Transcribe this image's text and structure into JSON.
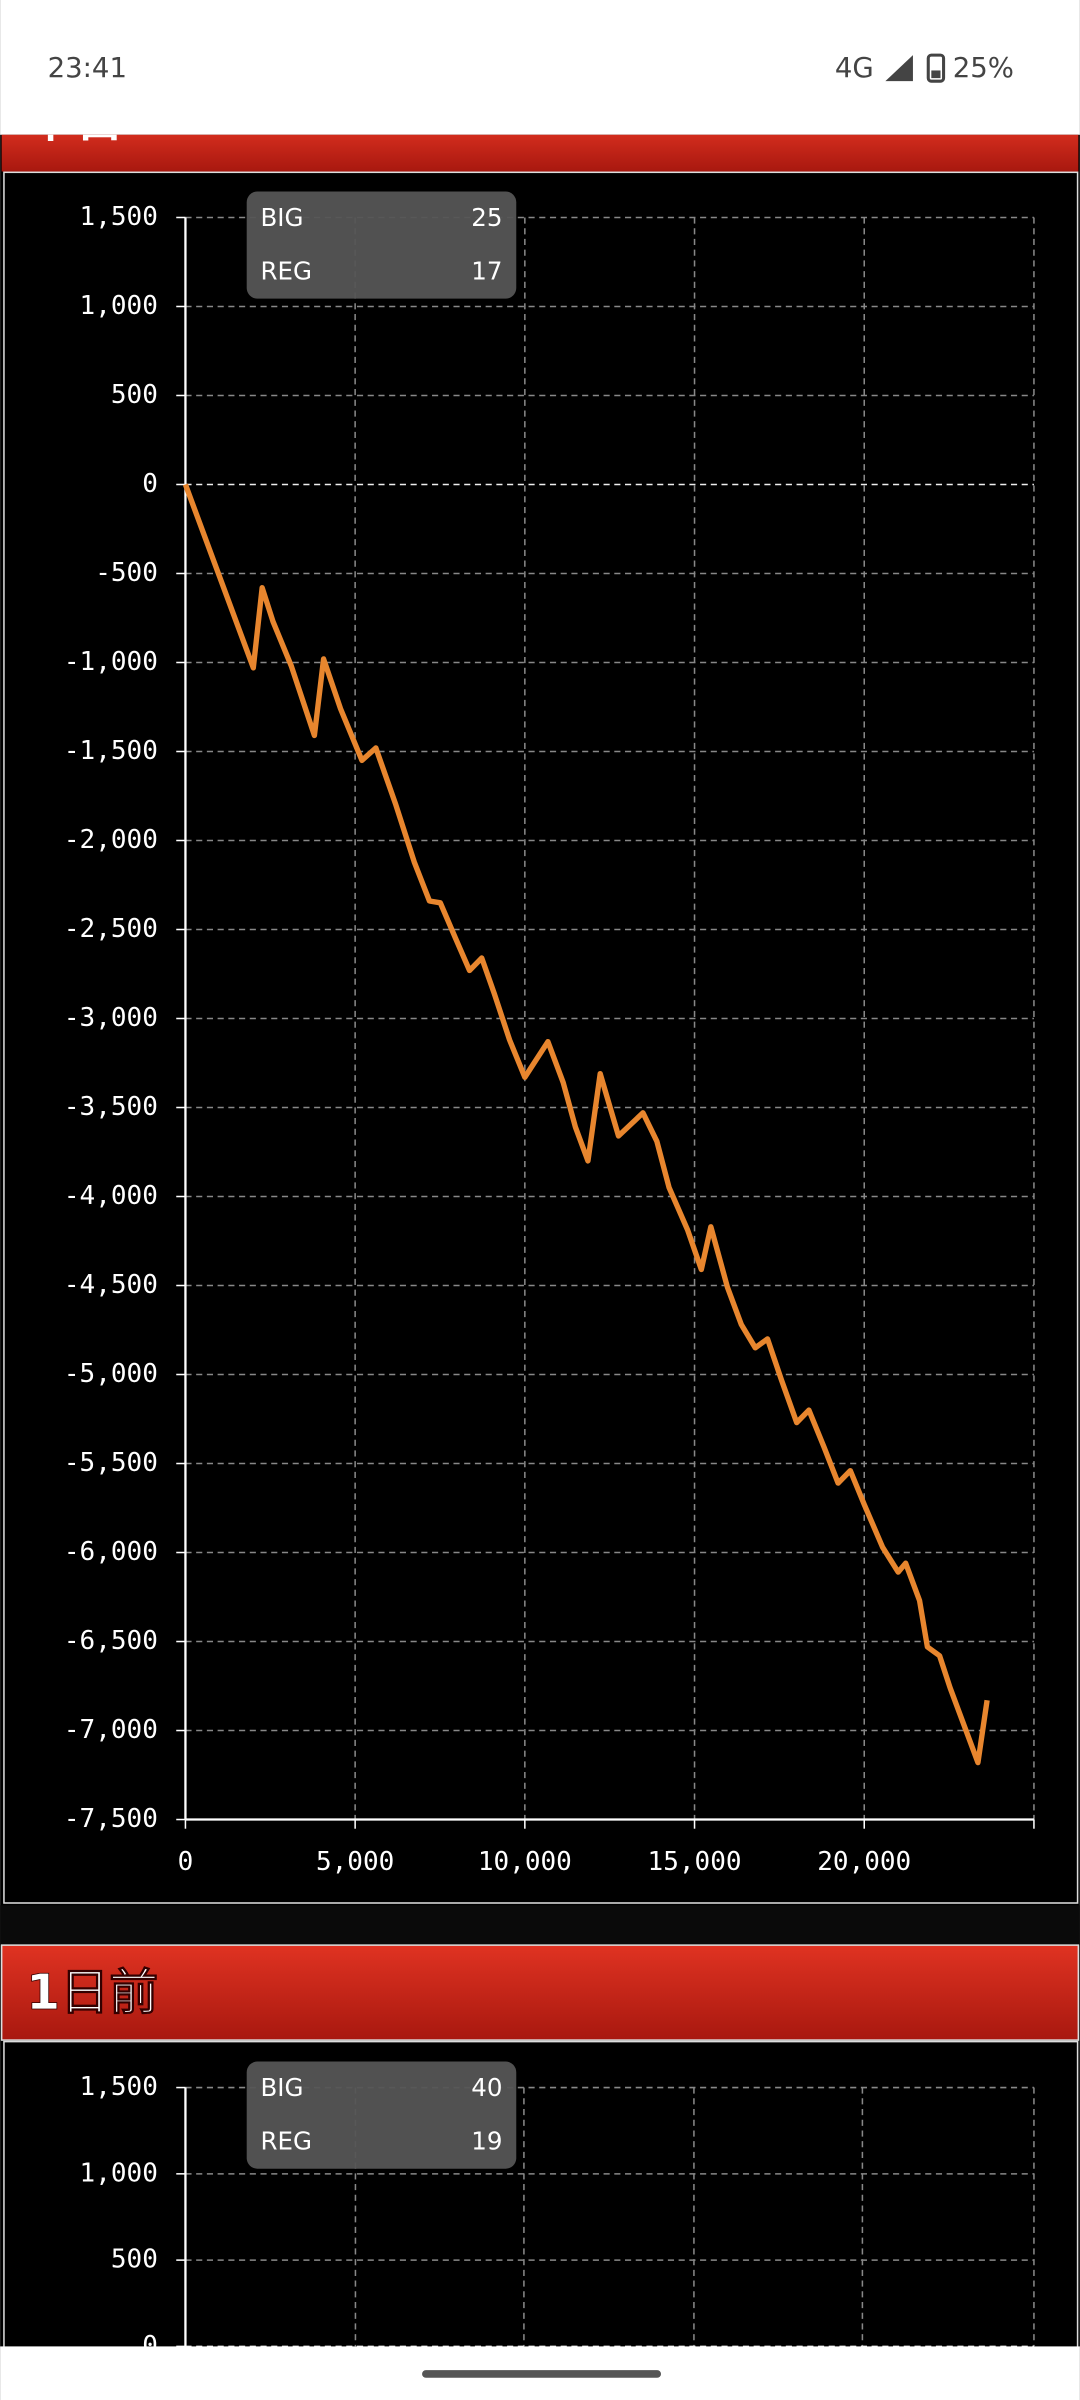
{
  "status_bar": {
    "time": "23:41",
    "network": "4G",
    "battery": "25%"
  },
  "chart_data": [
    {
      "type": "line",
      "title": "本日",
      "counters": [
        {
          "label": "BIG",
          "value": 25
        },
        {
          "label": "REG",
          "value": 17
        }
      ],
      "x": [
        0,
        2000,
        2260,
        2580,
        3120,
        3800,
        4070,
        4570,
        5200,
        5610,
        6200,
        6740,
        7190,
        7510,
        7960,
        8370,
        8730,
        9100,
        9550,
        10000,
        10680,
        11130,
        11490,
        11860,
        12220,
        12760,
        13480,
        13890,
        14250,
        14800,
        15200,
        15480,
        15970,
        16380,
        16790,
        17150,
        17560,
        18010,
        18370,
        18820,
        19230,
        19590,
        20000,
        20540,
        21000,
        21220,
        21630,
        21860,
        22220,
        22530,
        23350,
        23620
      ],
      "values": [
        0,
        -1030,
        -580,
        -770,
        -1020,
        -1410,
        -980,
        -1260,
        -1550,
        -1480,
        -1800,
        -2120,
        -2340,
        -2350,
        -2550,
        -2730,
        -2660,
        -2860,
        -3120,
        -3330,
        -3130,
        -3360,
        -3610,
        -3800,
        -3310,
        -3660,
        -3530,
        -3690,
        -3950,
        -4190,
        -4410,
        -4170,
        -4510,
        -4720,
        -4850,
        -4800,
        -5030,
        -5270,
        -5200,
        -5410,
        -5610,
        -5540,
        -5730,
        -5970,
        -6110,
        -6060,
        -6270,
        -6530,
        -6580,
        -6760,
        -7180,
        -6830
      ],
      "color": "#e8862e",
      "xlim": [
        0,
        25000
      ],
      "xticks": [
        0,
        {
          "value": 5000,
          "label": "5,000"
        },
        {
          "value": 10000,
          "label": "10,000"
        },
        {
          "value": 15000,
          "label": "15,000"
        },
        {
          "value": 20000,
          "label": "20,000"
        }
      ],
      "ylim": [
        -7500,
        1500
      ],
      "yticks": [
        {
          "value": 1500,
          "label": "1,500"
        },
        {
          "value": 1000,
          "label": "1,000"
        },
        500,
        0,
        -500,
        {
          "value": -1000,
          "label": "-1,000"
        },
        {
          "value": -1500,
          "label": "-1,500"
        },
        {
          "value": -2000,
          "label": "-2,000"
        },
        {
          "value": -2500,
          "label": "-2,500"
        },
        {
          "value": -3000,
          "label": "-3,000"
        },
        {
          "value": -3500,
          "label": "-3,500"
        },
        {
          "value": -4000,
          "label": "-4,000"
        },
        {
          "value": -4500,
          "label": "-4,500"
        },
        {
          "value": -5000,
          "label": "-5,000"
        },
        {
          "value": -5500,
          "label": "-5,500"
        },
        {
          "value": -6000,
          "label": "-6,000"
        },
        {
          "value": -6500,
          "label": "-6,500"
        },
        {
          "value": -7000,
          "label": "-7,000"
        },
        {
          "value": -7500,
          "label": "-7,500"
        }
      ],
      "grid": true
    },
    {
      "type": "line",
      "title": "1日前",
      "counters": [
        {
          "label": "BIG",
          "value": 40
        },
        {
          "label": "REG",
          "value": 19
        }
      ],
      "ylim": [
        0,
        1500
      ],
      "yticks": [
        {
          "value": 1500,
          "label": "1,500"
        },
        {
          "value": 1000,
          "label": "1,000"
        },
        500,
        0
      ],
      "grid": true
    }
  ]
}
